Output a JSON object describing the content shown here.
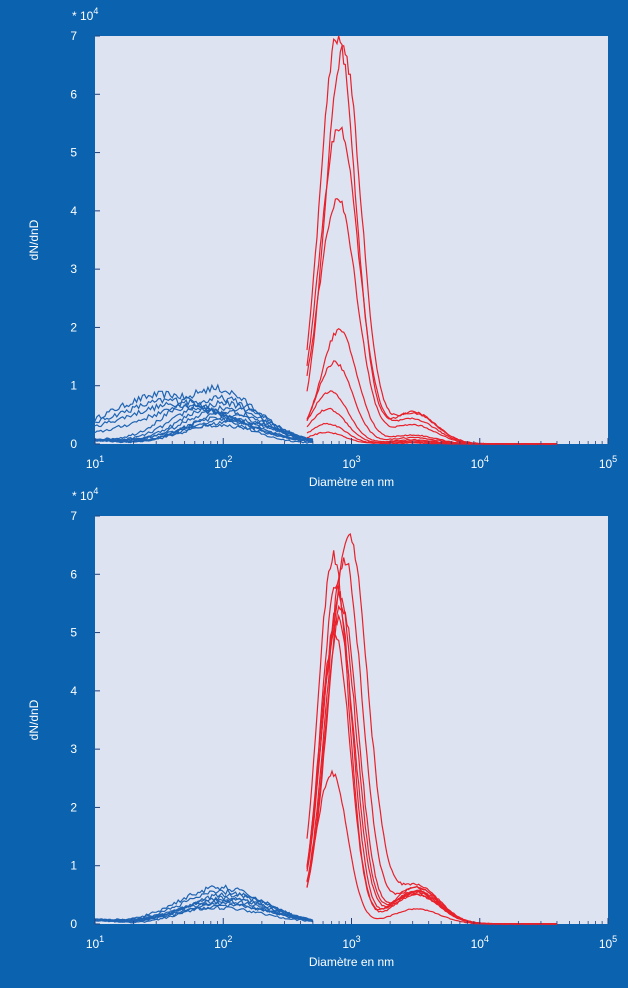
{
  "colors": {
    "background": "#0b63b0",
    "plot_area": "#dde3f1",
    "series_red": "#e8202a",
    "series_blue": "#1f64b3",
    "axis_text": "#ffffff"
  },
  "chart_data": [
    {
      "type": "line",
      "xlabel": "Diamètre en nm",
      "ylabel": "dN/dnD",
      "y_multiplier_label": "* 10",
      "y_multiplier_exponent": "4",
      "x_scale": "log",
      "xlim": [
        10,
        100000
      ],
      "ylim": [
        0,
        7
      ],
      "x_tick_labels": [
        {
          "base": "10",
          "exp": "1",
          "value": 10
        },
        {
          "base": "10",
          "exp": "2",
          "value": 100
        },
        {
          "base": "10",
          "exp": "3",
          "value": 1000
        },
        {
          "base": "10",
          "exp": "4",
          "value": 10000
        },
        {
          "base": "10",
          "exp": "5",
          "value": 100000
        }
      ],
      "y_ticks": [
        0,
        1,
        2,
        3,
        4,
        5,
        6,
        7
      ],
      "grid": false,
      "legend": "none",
      "series_groups": [
        {
          "color_key": "series_blue",
          "curves": [
            {
              "peak_x": 35,
              "peak_y": 0.85,
              "width": 0.42
            },
            {
              "peak_x": 40,
              "peak_y": 0.75,
              "width": 0.45
            },
            {
              "peak_x": 45,
              "peak_y": 0.68,
              "width": 0.45
            },
            {
              "peak_x": 55,
              "peak_y": 0.62,
              "width": 0.42
            },
            {
              "peak_x": 85,
              "peak_y": 0.95,
              "width": 0.33
            },
            {
              "peak_x": 95,
              "peak_y": 0.78,
              "width": 0.33
            },
            {
              "peak_x": 100,
              "peak_y": 0.7,
              "width": 0.32
            },
            {
              "peak_x": 105,
              "peak_y": 0.62,
              "width": 0.32
            },
            {
              "peak_x": 110,
              "peak_y": 0.55,
              "width": 0.3
            },
            {
              "peak_x": 110,
              "peak_y": 0.48,
              "width": 0.32
            },
            {
              "peak_x": 115,
              "peak_y": 0.42,
              "width": 0.34
            },
            {
              "peak_x": 120,
              "peak_y": 0.38,
              "width": 0.35
            },
            {
              "peak_x": 90,
              "peak_y": 0.32,
              "width": 0.38
            }
          ]
        },
        {
          "color_key": "series_red",
          "curves": [
            {
              "peak_x": 780,
              "peak_y": 7.0,
              "width": 0.14
            },
            {
              "peak_x": 860,
              "peak_y": 6.75,
              "width": 0.14
            },
            {
              "peak_x": 800,
              "peak_y": 5.45,
              "width": 0.15
            },
            {
              "peak_x": 780,
              "peak_y": 4.2,
              "width": 0.15
            },
            {
              "peak_x": 800,
              "peak_y": 1.95,
              "width": 0.14
            },
            {
              "peak_x": 740,
              "peak_y": 1.4,
              "width": 0.14
            },
            {
              "peak_x": 680,
              "peak_y": 0.9,
              "width": 0.14
            },
            {
              "peak_x": 660,
              "peak_y": 0.6,
              "width": 0.14
            },
            {
              "peak_x": 650,
              "peak_y": 0.35,
              "width": 0.14
            },
            {
              "peak_x": 640,
              "peak_y": 0.2,
              "width": 0.14
            }
          ],
          "x_start": 450,
          "tail_x": 3000,
          "tail_y": 0.55
        }
      ]
    },
    {
      "type": "line",
      "xlabel": "Diamètre en nm",
      "ylabel": "dN/dnD",
      "y_multiplier_label": "* 10",
      "y_multiplier_exponent": "4",
      "x_scale": "log",
      "xlim": [
        10,
        100000
      ],
      "ylim": [
        0,
        7
      ],
      "x_tick_labels": [
        {
          "base": "10",
          "exp": "1",
          "value": 10
        },
        {
          "base": "10",
          "exp": "2",
          "value": 100
        },
        {
          "base": "10",
          "exp": "3",
          "value": 1000
        },
        {
          "base": "10",
          "exp": "4",
          "value": 10000
        },
        {
          "base": "10",
          "exp": "5",
          "value": 100000
        }
      ],
      "y_ticks": [
        0,
        1,
        2,
        3,
        4,
        5,
        6,
        7
      ],
      "grid": false,
      "legend": "none",
      "series_groups": [
        {
          "color_key": "series_blue",
          "curves": [
            {
              "peak_x": 95,
              "peak_y": 0.62,
              "width": 0.34
            },
            {
              "peak_x": 100,
              "peak_y": 0.55,
              "width": 0.34
            },
            {
              "peak_x": 110,
              "peak_y": 0.5,
              "width": 0.33
            },
            {
              "peak_x": 105,
              "peak_y": 0.45,
              "width": 0.33
            },
            {
              "peak_x": 100,
              "peak_y": 0.4,
              "width": 0.35
            },
            {
              "peak_x": 95,
              "peak_y": 0.36,
              "width": 0.36
            },
            {
              "peak_x": 110,
              "peak_y": 0.32,
              "width": 0.36
            },
            {
              "peak_x": 90,
              "peak_y": 0.28,
              "width": 0.38
            },
            {
              "peak_x": 120,
              "peak_y": 0.42,
              "width": 0.32
            }
          ]
        },
        {
          "color_key": "series_red",
          "curves": [
            {
              "peak_x": 950,
              "peak_y": 6.65,
              "width": 0.15
            },
            {
              "peak_x": 720,
              "peak_y": 6.3,
              "width": 0.12
            },
            {
              "peak_x": 880,
              "peak_y": 6.25,
              "width": 0.14
            },
            {
              "peak_x": 760,
              "peak_y": 5.8,
              "width": 0.12
            },
            {
              "peak_x": 800,
              "peak_y": 5.6,
              "width": 0.13
            },
            {
              "peak_x": 840,
              "peak_y": 5.45,
              "width": 0.13
            },
            {
              "peak_x": 780,
              "peak_y": 5.2,
              "width": 0.13
            },
            {
              "peak_x": 740,
              "peak_y": 5.0,
              "width": 0.12
            },
            {
              "peak_x": 700,
              "peak_y": 2.6,
              "width": 0.12
            }
          ],
          "x_start": 450,
          "tail_x": 3200,
          "tail_y": 0.7
        }
      ]
    }
  ]
}
